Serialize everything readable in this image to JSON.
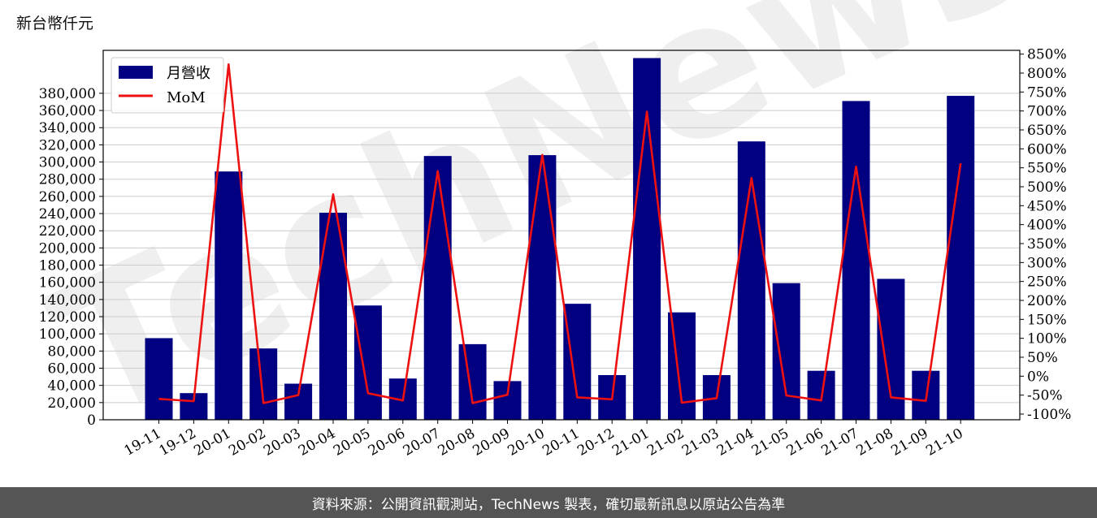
{
  "unit_label": "新台幣仟元",
  "watermark": "TechNews",
  "footer": "資料來源：公開資訊觀測站，TechNews 製表，確切最新訊息以原站公告為準",
  "colors": {
    "bar": "#000080",
    "line": "#ee1111",
    "grid": "#cccccc",
    "footer_bg": "#555555"
  },
  "chart_data": {
    "type": "bar",
    "categories": [
      "19-11",
      "19-12",
      "20-01",
      "20-02",
      "20-03",
      "20-04",
      "20-05",
      "20-06",
      "20-07",
      "20-08",
      "20-09",
      "20-10",
      "20-11",
      "20-12",
      "21-01",
      "21-02",
      "21-03",
      "21-04",
      "21-05",
      "21-06",
      "21-07",
      "21-08",
      "21-09",
      "21-10"
    ],
    "series": [
      {
        "name": "月營收",
        "type": "bar",
        "axis": "left",
        "values": [
          95000,
          31000,
          289000,
          83000,
          42000,
          241000,
          133000,
          48000,
          307000,
          88000,
          45000,
          308000,
          135000,
          52000,
          421000,
          125000,
          52000,
          324000,
          159000,
          57000,
          371000,
          164000,
          57000,
          377000
        ]
      },
      {
        "name": "MoM",
        "type": "line",
        "axis": "right",
        "values": [
          -60,
          -66,
          823,
          -71,
          -50,
          480,
          -45,
          -64,
          541,
          -71,
          -49,
          584,
          -56,
          -61,
          698,
          -70,
          -58,
          523,
          -51,
          -64,
          553,
          -56,
          -65,
          562
        ]
      }
    ],
    "y_left": {
      "min": 0,
      "max": 380000,
      "step": 20000,
      "range": [
        0,
        430000
      ]
    },
    "y_right": {
      "min": -100,
      "max": 850,
      "step": 50,
      "suffix": "%",
      "range": [
        -115,
        860
      ]
    },
    "legend_position": "top-left",
    "grid": true
  }
}
